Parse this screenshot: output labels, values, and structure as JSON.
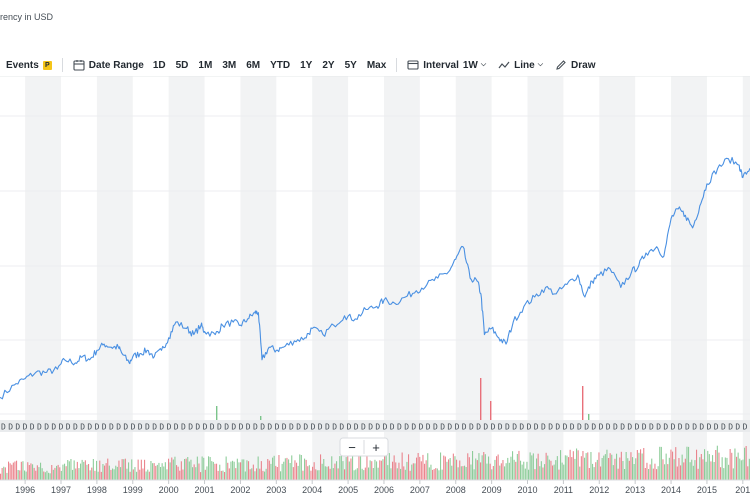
{
  "header": {
    "currency": "rency in USD"
  },
  "toolbar": {
    "events_label": "Events",
    "events_badge": "P",
    "date_range_label": "Date Range",
    "ranges": [
      "1D",
      "5D",
      "1M",
      "3M",
      "6M",
      "YTD",
      "1Y",
      "2Y",
      "5Y",
      "Max"
    ],
    "interval_label": "Interval",
    "interval_value": "1W",
    "chart_type_label": "Line",
    "draw_label": "Draw"
  },
  "zoom": {
    "minus": "−",
    "plus": "+"
  },
  "event_marker": "D",
  "colors": {
    "line": "#4a90e2",
    "band": "#f2f3f4",
    "volume_up": "#7bc48a",
    "volume_down": "#e8707a"
  },
  "icons": {
    "events": "none",
    "date_range": "calendar-icon",
    "interval": "interval-icon",
    "chart_type": "line-chart-icon",
    "draw": "pencil-icon"
  },
  "chart_data": {
    "type": "line",
    "x_unit": "year",
    "x_ticks": [
      "1996",
      "1997",
      "1998",
      "1999",
      "2000",
      "2001",
      "2002",
      "2003",
      "2004",
      "2005",
      "2006",
      "2007",
      "2008",
      "2009",
      "2010",
      "2011",
      "2012",
      "2013",
      "2014",
      "2015",
      "201"
    ],
    "x_range": [
      1995.3,
      2016.2
    ],
    "y_unit": "relative price",
    "y_range": [
      0,
      100
    ],
    "grid": "alternating vertical year bands, horizontal gridlines",
    "series": [
      {
        "x": [
          1995.3,
          1995.7,
          1996.0,
          1996.3,
          1996.6,
          1996.9,
          1997.1,
          1997.4,
          1997.6,
          1997.8,
          1998.0,
          1998.2,
          1998.4,
          1998.6,
          1998.7,
          1998.9,
          1999.0,
          1999.2,
          1999.4,
          1999.6,
          1999.8,
          2000.0,
          2000.2,
          2000.5,
          2000.7,
          2000.9,
          2001.0,
          2001.3,
          2001.5,
          2001.8,
          2002.0,
          2002.2,
          2002.4,
          2002.5,
          2002.6,
          2002.8,
          2003.0,
          2003.2,
          2003.5,
          2003.8,
          2004.0,
          2004.3,
          2004.6,
          2004.9,
          2005.2,
          2005.5,
          2005.8,
          2006.0,
          2006.3,
          2006.6,
          2006.9,
          2007.2,
          2007.5,
          2007.8,
          2008.0,
          2008.2,
          2008.4,
          2008.6,
          2008.7,
          2008.8,
          2009.0,
          2009.2,
          2009.4,
          2009.6,
          2009.9,
          2010.2,
          2010.5,
          2010.8,
          2011.1,
          2011.4,
          2011.6,
          2011.8,
          2012.0,
          2012.3,
          2012.6,
          2012.9,
          2013.1,
          2013.3,
          2013.6,
          2013.8,
          2014.0,
          2014.2,
          2014.4,
          2014.6,
          2014.8,
          2015.0,
          2015.3,
          2015.6,
          2015.9,
          2016.0,
          2016.2
        ],
        "y": [
          4,
          8,
          10,
          12,
          12,
          13,
          16,
          15,
          17,
          16,
          19,
          21,
          20,
          20,
          18,
          15,
          17,
          18,
          19,
          17,
          19,
          23,
          28,
          26,
          24,
          27,
          25,
          24,
          27,
          28,
          27,
          29,
          31,
          31,
          16,
          20,
          19,
          20,
          22,
          23,
          26,
          24,
          27,
          30,
          29,
          32,
          33,
          35,
          34,
          36,
          38,
          40,
          42,
          44,
          48,
          52,
          42,
          41,
          37,
          24,
          26,
          23,
          21,
          28,
          33,
          36,
          39,
          37,
          40,
          43,
          36,
          41,
          43,
          45,
          39,
          44,
          46,
          50,
          52,
          49,
          61,
          64,
          62,
          58,
          65,
          72,
          77,
          80,
          78,
          74,
          77
        ]
      }
    ]
  }
}
